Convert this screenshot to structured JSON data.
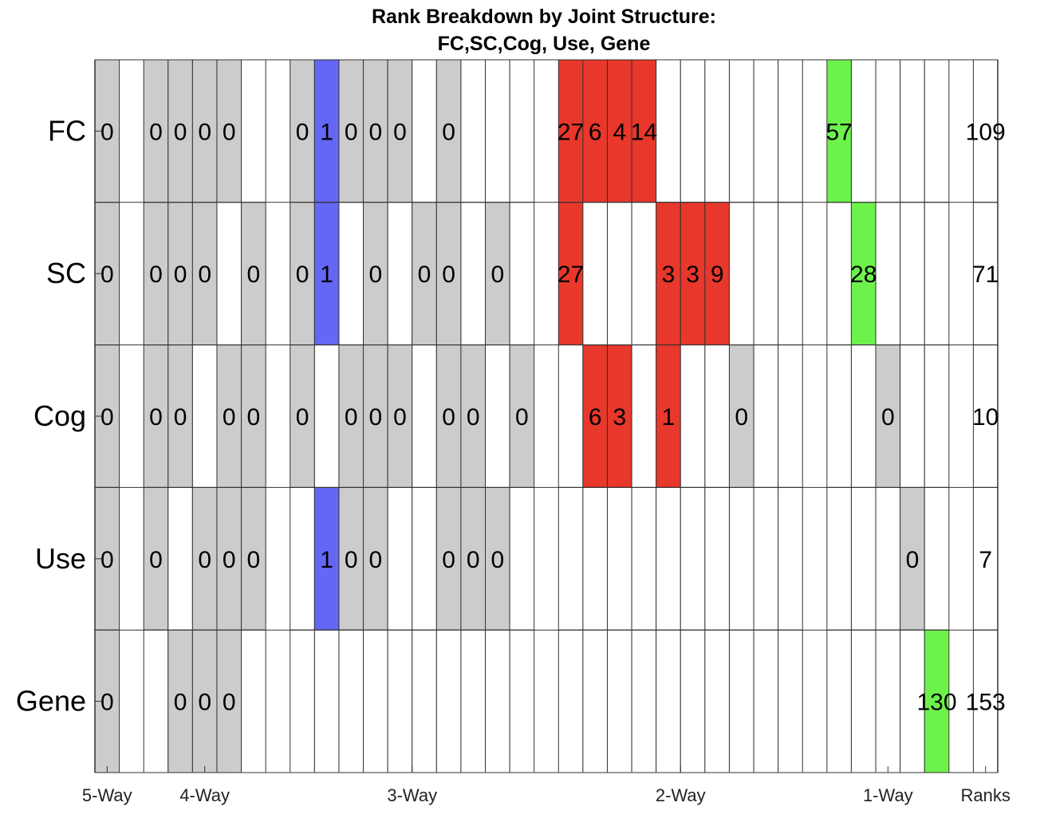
{
  "chart_data": {
    "type": "heatmap",
    "title": "Rank Breakdown by Joint Structure:",
    "subtitle": "FC,SC,Cog, Use, Gene",
    "rows": [
      "FC",
      "SC",
      "Cog",
      "Use",
      "Gene"
    ],
    "column_groups": [
      {
        "label": "5-Way",
        "columns": 1
      },
      {
        "label": "4-Way",
        "columns": 5
      },
      {
        "label": "3-Way",
        "columns": 10
      },
      {
        "label": "2-Way",
        "columns": 10
      },
      {
        "label": "1-Way",
        "columns": 5
      },
      {
        "label": "Ranks",
        "columns": 1
      }
    ],
    "legend_colors": {
      "zero": "#cccccc",
      "three_way": "#6466f5",
      "two_way": "#e8372b",
      "one_way": "#6cf24b",
      "empty": "#ffffff"
    },
    "column_members": [
      [
        0,
        1,
        2,
        3,
        4
      ],
      [
        0,
        1,
        2,
        3
      ],
      [
        0,
        1,
        2,
        4
      ],
      [
        0,
        1,
        3,
        4
      ],
      [
        0,
        2,
        3,
        4
      ],
      [
        1,
        2,
        3,
        4
      ],
      [
        0,
        1,
        2
      ],
      [
        0,
        1,
        3
      ],
      [
        0,
        1,
        4
      ],
      [
        0,
        2,
        3
      ],
      [
        0,
        2,
        4
      ],
      [
        0,
        3,
        4
      ],
      [
        1,
        2,
        3
      ],
      [
        1,
        2,
        4
      ],
      [
        1,
        3,
        4
      ],
      [
        2,
        3,
        4
      ],
      [
        0,
        1
      ],
      [
        0,
        2
      ],
      [
        0,
        3
      ],
      [
        0,
        4
      ],
      [
        1,
        2
      ],
      [
        1,
        3
      ],
      [
        1,
        4
      ],
      [
        2,
        3
      ],
      [
        2,
        4
      ],
      [
        3,
        4
      ],
      [
        0
      ],
      [
        1
      ],
      [
        2
      ],
      [
        3
      ],
      [
        4
      ],
      [
        0,
        1,
        2,
        3,
        4
      ]
    ],
    "values": [
      [
        "0",
        "0",
        "0",
        "0",
        "0",
        "",
        "0",
        "1",
        "0",
        "0",
        "0",
        "",
        "0",
        "",
        "",
        "",
        "27",
        "6",
        "4",
        "14",
        "",
        "",
        "",
        "",
        "",
        "",
        "57",
        "",
        "",
        "",
        "",
        "109"
      ],
      [
        "0",
        "0",
        "0",
        "0",
        "",
        "0",
        "0",
        "1",
        "",
        "0",
        "",
        "0",
        "0",
        "",
        "0",
        "",
        "27",
        "",
        "",
        "",
        "3",
        "3",
        "9",
        "",
        "",
        "",
        "",
        "28",
        "",
        "",
        "",
        "71"
      ],
      [
        "0",
        "0",
        "0",
        "",
        "0",
        "0",
        "0",
        "",
        "0",
        "0",
        "0",
        "",
        "0",
        "0",
        "",
        "0",
        "",
        "6",
        "3",
        "",
        "1",
        "",
        "",
        "0",
        "",
        "",
        "",
        "",
        "0",
        "",
        "",
        "10"
      ],
      [
        "0",
        "0",
        "",
        "0",
        "0",
        "0",
        "",
        "1",
        "0",
        "0",
        "",
        "",
        "0",
        "0",
        "0",
        "",
        "",
        "",
        "",
        "",
        "",
        "",
        "",
        "",
        "",
        "",
        "",
        "",
        "",
        "0",
        "",
        "7"
      ],
      [
        "0",
        "",
        "0",
        "0",
        "0",
        "",
        "",
        "",
        "",
        "",
        "",
        "",
        "",
        "",
        "",
        "",
        "",
        "",
        "",
        "",
        "",
        "",
        "",
        "",
        "",
        "",
        "",
        "",
        "",
        "",
        "130",
        "153"
      ]
    ],
    "extra_values": [
      {
        "row": 0,
        "col": 21,
        "value": ""
      }
    ]
  }
}
